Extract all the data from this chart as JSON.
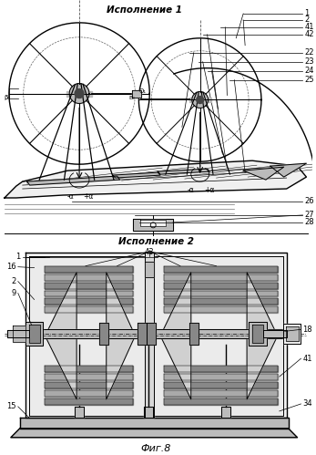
{
  "title1": "Исполнение 1",
  "title2": "Исполнение 2",
  "fig_label": "Фиг.8",
  "bg_color": "#ffffff",
  "lc": "#000000",
  "lg": "#777777",
  "ld": "#555555",
  "fdark": "#444444",
  "fmed": "#888888",
  "fgray": "#bbbbbb",
  "flight": "#dddddd",
  "fwhite": "#f2f2f2"
}
